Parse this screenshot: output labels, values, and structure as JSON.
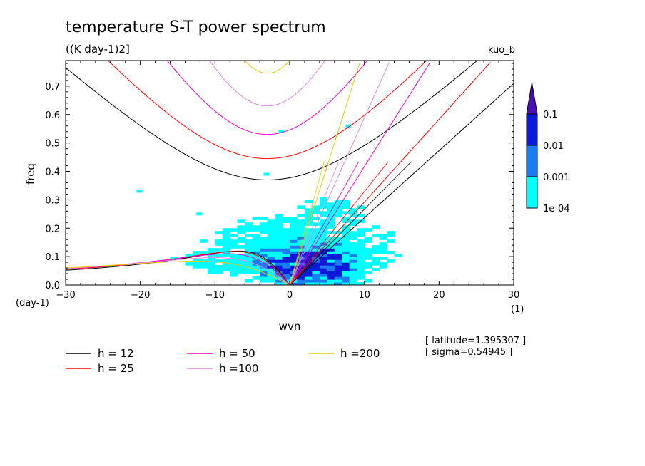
{
  "chart_data": {
    "type": "contour",
    "title": "temperature S-T power spectrum",
    "units": "((K day-1)2]",
    "tag": "kuo_b",
    "xlabel": "wvn",
    "ylabel": "freq",
    "x_unit": "(1)",
    "y_unit": "(day-1)",
    "xlim": [
      -30,
      30
    ],
    "ylim": [
      0,
      0.79
    ],
    "xticks": [
      -30,
      -20,
      -10,
      0,
      10,
      20,
      30
    ],
    "yticks": [
      0.0,
      0.1,
      0.2,
      0.3,
      0.4,
      0.5,
      0.6,
      0.7
    ],
    "ytick_labels": [
      "0.0",
      "0.1",
      "0.2",
      "0.3",
      "0.4",
      "0.5",
      "0.6",
      "0.7"
    ],
    "colorbar": {
      "levels": [
        "1e-04",
        "0.001",
        "0.01",
        "0.1"
      ],
      "colors": [
        "#00ffff",
        "#1a7cf0",
        "#0a1ad8",
        "#4a10b8"
      ]
    },
    "info": [
      "[ latitude=1.395307 ]",
      "[ sigma=0.54945 ]"
    ],
    "dispersion_curves": [
      {
        "label": "h = 12",
        "h": 12,
        "color": "#000000"
      },
      {
        "label": "h = 25",
        "h": 25,
        "color": "#ff0000"
      },
      {
        "label": "h = 50",
        "h": 50,
        "color": "#ee00cc"
      },
      {
        "label": "h =100",
        "h": 100,
        "color": "#dd88dd"
      },
      {
        "label": "h =200",
        "h": 200,
        "color": "#f0c800"
      }
    ],
    "kelvin_end_wvn": {
      "12": 29.6,
      "25": 24,
      "50": 16.8,
      "100": 11.9,
      "200": 8.4
    },
    "gravity_min_freq": {
      "12": 0.37,
      "25": 0.445,
      "50": 0.53,
      "100": 0.63,
      "200": 0.745
    },
    "gravity_min_wvn": -3,
    "rossby_freq_at_-30": {
      "12": 0.052,
      "25": 0.055,
      "50": 0.057,
      "100": 0.058,
      "200": 0.06
    }
  }
}
